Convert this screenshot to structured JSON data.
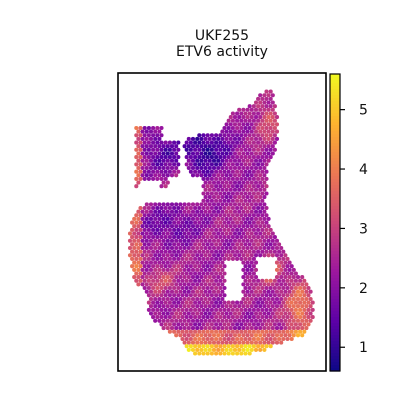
{
  "chart_data": {
    "type": "heatmap",
    "plot_kind": "spatial spot map (hexagonal grid)",
    "title_lines": [
      "UKF255",
      "ETV6 activity"
    ],
    "xlabel": "",
    "ylabel": "",
    "colormap": "plasma",
    "colormap_stops": [
      "#0d0887",
      "#5c01a6",
      "#9c179e",
      "#cc4778",
      "#ed7953",
      "#fdb42f",
      "#f0f921"
    ],
    "color_range": [
      0.6,
      5.6
    ],
    "colorbar_ticks": [
      1,
      2,
      3,
      4,
      5
    ],
    "grid": false,
    "axes_ticks_visible": false,
    "spatial_layout": {
      "main_region": "fan-shaped tissue section, values mostly 2–3 (purple/magenta)",
      "low_regions": "upper-left lobe interior and upper center, values near 1 (dark blue)",
      "high_regions": "bottom edge and bottom-right border near 4.5–5.5 (orange/yellow); left border near 3.5–4"
    }
  }
}
